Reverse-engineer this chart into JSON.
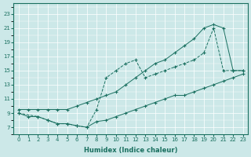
{
  "xlabel": "Humidex (Indice chaleur)",
  "bg_color": "#cce8e8",
  "line_color": "#1a7060",
  "grid_color": "#ffffff",
  "xlim": [
    -0.5,
    23.5
  ],
  "ylim": [
    6.0,
    24.5
  ],
  "xticks": [
    0,
    1,
    2,
    3,
    4,
    5,
    6,
    7,
    8,
    9,
    10,
    11,
    12,
    13,
    14,
    15,
    16,
    17,
    18,
    19,
    20,
    21,
    22,
    23
  ],
  "yticks": [
    7,
    9,
    11,
    13,
    15,
    17,
    19,
    21,
    23
  ],
  "curve1_x": [
    0,
    1,
    2,
    3,
    4,
    5,
    6,
    7,
    8,
    9,
    10,
    11,
    12,
    13,
    14,
    15,
    16,
    17,
    18,
    19,
    20,
    21,
    22,
    23
  ],
  "curve1_y": [
    9.0,
    8.5,
    8.5,
    8.0,
    7.5,
    7.5,
    7.2,
    7.0,
    7.8,
    8.0,
    8.5,
    9.0,
    9.5,
    10.0,
    10.5,
    11.0,
    11.5,
    11.5,
    12.0,
    12.5,
    13.0,
    13.5,
    14.0,
    14.5
  ],
  "curve2_x": [
    0,
    2,
    3,
    4,
    5,
    6,
    7,
    8,
    9,
    10,
    11,
    12,
    13,
    14,
    15,
    16,
    17,
    18,
    19,
    20,
    21,
    22,
    23
  ],
  "curve2_y": [
    9.0,
    8.5,
    8.0,
    7.5,
    7.5,
    7.2,
    7.0,
    9.5,
    14.0,
    15.0,
    16.0,
    16.5,
    14.0,
    14.5,
    15.0,
    15.5,
    16.0,
    16.5,
    17.5,
    21.0,
    15.0,
    15.0,
    15.0
  ],
  "curve3_x": [
    0,
    1,
    2,
    3,
    4,
    5,
    6,
    7,
    8,
    9,
    10,
    11,
    12,
    13,
    14,
    15,
    16,
    17,
    18,
    19,
    20,
    21,
    22,
    23
  ],
  "curve3_y": [
    9.5,
    9.5,
    9.5,
    9.5,
    9.5,
    9.5,
    10.0,
    10.5,
    11.0,
    11.5,
    12.0,
    13.0,
    14.0,
    15.0,
    16.0,
    16.5,
    17.5,
    18.5,
    19.5,
    21.0,
    21.5,
    21.0,
    15.0,
    15.0
  ]
}
